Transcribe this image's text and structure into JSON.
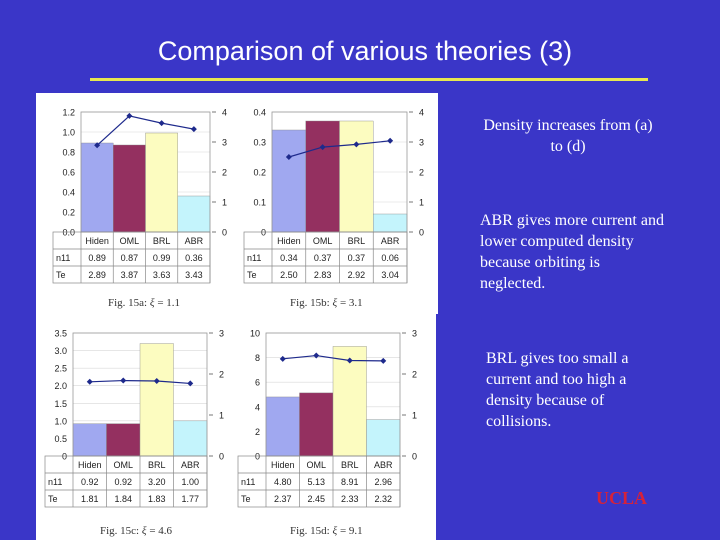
{
  "slide": {
    "title": "Comparison of various theories (3)",
    "notes": [
      "Density increases from (a) to (d)",
      "ABR gives more current and lower computed density because orbiting is neglected.",
      "BRL gives too small a current and too high a density because of collisions."
    ],
    "logo": "UCLA"
  },
  "colors": {
    "background": "#3a36c8",
    "title": "#ffffff",
    "rule": "#e8e850",
    "logo": "#d6223a",
    "bars": [
      "#a0a8f0",
      "#943060",
      "#fcfcc0",
      "#c4f4fc"
    ],
    "line": "#1e2a8c"
  },
  "chart_data": [
    {
      "type": "bar",
      "caption_prefix": "Fig. 15a:",
      "caption_value": "= 1.1",
      "categories": [
        "Hiden",
        "OML",
        "BRL",
        "ABR"
      ],
      "series": [
        {
          "values": [
            0.89,
            0.87,
            0.99,
            0.36
          ]
        },
        {
          "values": [
            2.89,
            3.87,
            3.63,
            3.43
          ]
        }
      ],
      "ylim": [
        0,
        1.2
      ],
      "yticks": [
        "0.0",
        "0.2",
        "0.4",
        "0.6",
        "0.8",
        "1.0",
        "1.2"
      ],
      "y2lim": [
        0,
        4
      ],
      "y2ticks": [
        "0",
        "1",
        "2",
        "3",
        "4"
      ],
      "table": {
        "rows": [
          {
            "label": "n11",
            "values": [
              "0.89",
              "0.87",
              "0.99",
              "0.36"
            ]
          },
          {
            "label": "Te",
            "values": [
              "2.89",
              "3.87",
              "3.63",
              "3.43"
            ]
          }
        ]
      }
    },
    {
      "type": "bar",
      "caption_prefix": "Fig. 15b:",
      "caption_value": "= 3.1",
      "categories": [
        "Hiden",
        "OML",
        "BRL",
        "ABR"
      ],
      "series": [
        {
          "values": [
            0.34,
            0.37,
            0.37,
            0.06
          ]
        },
        {
          "values": [
            2.5,
            2.83,
            2.92,
            3.04
          ]
        }
      ],
      "ylim": [
        0,
        0.4
      ],
      "yticks": [
        "0",
        "0.1",
        "0.2",
        "0.3",
        "0.4"
      ],
      "y2lim": [
        0,
        4
      ],
      "y2ticks": [
        "0",
        "1",
        "2",
        "3",
        "4"
      ],
      "table": {
        "rows": [
          {
            "label": "n11",
            "values": [
              "0.34",
              "0.37",
              "0.37",
              "0.06"
            ]
          },
          {
            "label": "Te",
            "values": [
              "2.50",
              "2.83",
              "2.92",
              "3.04"
            ]
          }
        ]
      }
    },
    {
      "type": "bar",
      "caption_prefix": "Fig. 15c:",
      "caption_value": "= 4.6",
      "categories": [
        "Hiden",
        "OML",
        "BRL",
        "ABR"
      ],
      "series": [
        {
          "values": [
            0.92,
            0.92,
            3.2,
            1.0
          ]
        },
        {
          "values": [
            1.81,
            1.84,
            1.83,
            1.77
          ]
        }
      ],
      "ylim": [
        0,
        3.5
      ],
      "yticks": [
        "0",
        "0.5",
        "1.0",
        "1.5",
        "2.0",
        "2.5",
        "3.0",
        "3.5"
      ],
      "y2lim": [
        0,
        3
      ],
      "y2ticks": [
        "0",
        "1",
        "2",
        "3"
      ],
      "table": {
        "rows": [
          {
            "label": "n11",
            "values": [
              "0.92",
              "0.92",
              "3.20",
              "1.00"
            ]
          },
          {
            "label": "Te",
            "values": [
              "1.81",
              "1.84",
              "1.83",
              "1.77"
            ]
          }
        ]
      }
    },
    {
      "type": "bar",
      "caption_prefix": "Fig. 15d:",
      "caption_value": "= 9.1",
      "categories": [
        "Hiden",
        "OML",
        "BRL",
        "ABR"
      ],
      "series": [
        {
          "values": [
            4.8,
            5.13,
            8.91,
            2.96
          ]
        },
        {
          "values": [
            2.37,
            2.45,
            2.33,
            2.32
          ]
        }
      ],
      "ylim": [
        0,
        10
      ],
      "yticks": [
        "0",
        "2",
        "4",
        "6",
        "8",
        "10"
      ],
      "y2lim": [
        0,
        3
      ],
      "y2ticks": [
        "0",
        "1",
        "2",
        "3"
      ],
      "table": {
        "rows": [
          {
            "label": "n11",
            "values": [
              "4.80",
              "5.13",
              "8.91",
              "2.96"
            ]
          },
          {
            "label": "Te",
            "values": [
              "2.37",
              "2.45",
              "2.33",
              "2.32"
            ]
          }
        ]
      }
    }
  ]
}
